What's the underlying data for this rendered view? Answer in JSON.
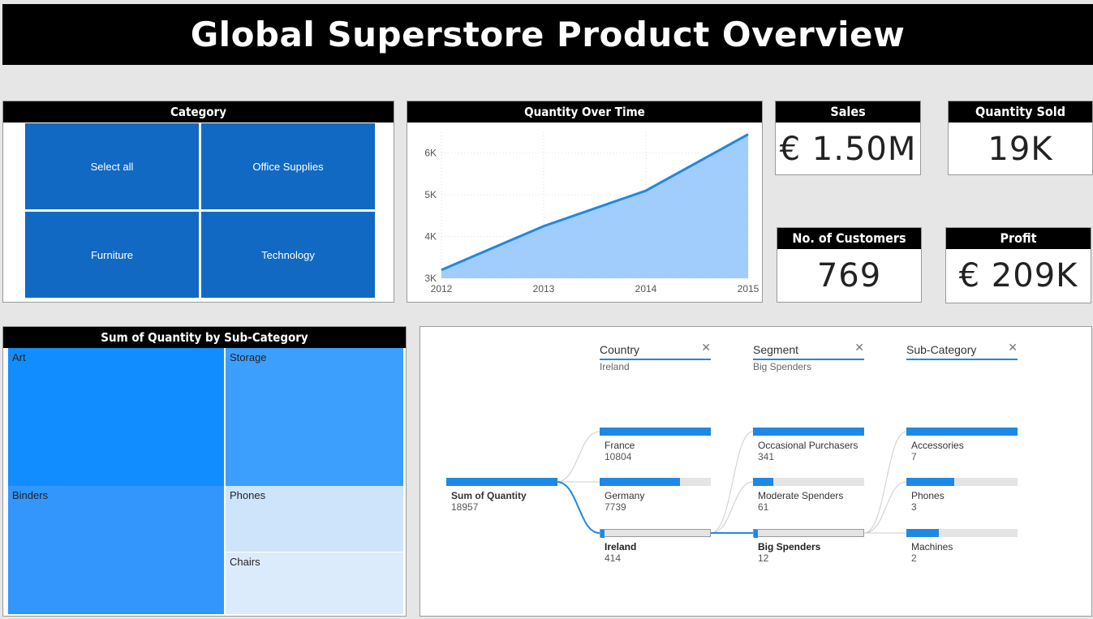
{
  "title": "Global Superstore Product Overview",
  "colors": {
    "accent": "#1e88e5",
    "tile": "#1169c4",
    "header": "#000000"
  },
  "category": {
    "header": "Category",
    "items": [
      {
        "label": "Select all"
      },
      {
        "label": "Office Supplies"
      },
      {
        "label": "Furniture"
      },
      {
        "label": "Technology"
      }
    ]
  },
  "kpis": {
    "sales": {
      "label": "Sales",
      "value": "€ 1.50M"
    },
    "quantity": {
      "label": "Quantity Sold",
      "value": "19K"
    },
    "customers": {
      "label": "No. of Customers",
      "value": "769"
    },
    "profit": {
      "label": "Profit",
      "value": "€ 209K"
    }
  },
  "chart_data": {
    "type": "area",
    "title": "Quantity Over Time",
    "x": [
      "2012",
      "2013",
      "2014",
      "2015"
    ],
    "values": [
      3200,
      4250,
      5100,
      6450
    ],
    "ylim": [
      3000,
      6500
    ],
    "yticks": [
      "3K",
      "4K",
      "5K",
      "6K"
    ],
    "ytick_values": [
      3000,
      4000,
      5000,
      6000
    ],
    "grid": true
  },
  "treemap": {
    "header": "Sum of Quantity by Sub-Category",
    "cells": [
      {
        "label": "Art",
        "color": "#118dff"
      },
      {
        "label": "Storage",
        "color": "#3d9ffd"
      },
      {
        "label": "Binders",
        "color": "#3296fc"
      },
      {
        "label": "Phones",
        "color": "#cde4fb"
      },
      {
        "label": "Chairs",
        "color": "#dcebfb"
      }
    ]
  },
  "decomp": {
    "columns": [
      {
        "header": "Country",
        "filter": "Ireland"
      },
      {
        "header": "Segment",
        "filter": "Big Spenders"
      },
      {
        "header": "Sub-Category",
        "filter": ""
      }
    ],
    "root": {
      "label": "Sum of Quantity",
      "value": "18957",
      "fill": 1.0
    },
    "level1": [
      {
        "label": "France",
        "value": "10804",
        "fill": 1.0
      },
      {
        "label": "Germany",
        "value": "7739",
        "fill": 0.72
      },
      {
        "label": "Ireland",
        "value": "414",
        "fill": 0.04
      }
    ],
    "level2": [
      {
        "label": "Occasional Purchasers",
        "value": "341",
        "fill": 1.0
      },
      {
        "label": "Moderate Spenders",
        "value": "61",
        "fill": 0.18
      },
      {
        "label": "Big Spenders",
        "value": "12",
        "fill": 0.04
      }
    ],
    "level3": [
      {
        "label": "Accessories",
        "value": "7",
        "fill": 1.0
      },
      {
        "label": "Phones",
        "value": "3",
        "fill": 0.43
      },
      {
        "label": "Machines",
        "value": "2",
        "fill": 0.29
      }
    ]
  }
}
